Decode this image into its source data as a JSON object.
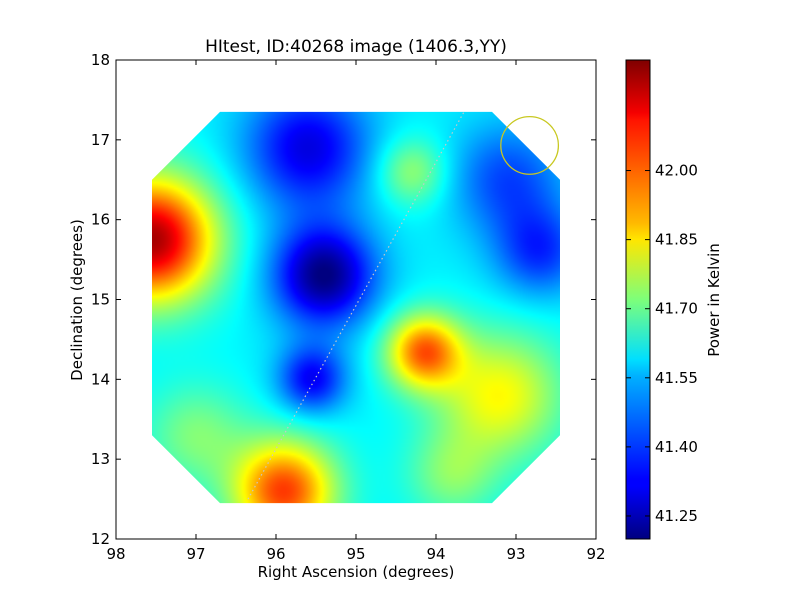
{
  "chart_data": {
    "type": "heatmap",
    "title": "HItest, ID:40268 image (1406.3,YY)",
    "xlabel": "Right Ascension (degrees)",
    "ylabel": "Declination (degrees)",
    "xlim": [
      98,
      92
    ],
    "ylim": [
      12,
      18
    ],
    "x_ticks": [
      "98",
      "97",
      "96",
      "95",
      "94",
      "93",
      "92"
    ],
    "y_ticks": [
      "12",
      "13",
      "14",
      "15",
      "16",
      "17",
      "18"
    ],
    "colorbar": {
      "label": "Power in Kelvin",
      "range": [
        41.2,
        42.24
      ],
      "ticks": [
        "41.25",
        "41.40",
        "41.55",
        "41.70",
        "41.85",
        "42.00"
      ],
      "colormap": "jet"
    },
    "background_value": 41.58,
    "blobs": [
      {
        "ra": 97.55,
        "dec": 15.75,
        "value": 42.2,
        "sigma": 0.55
      },
      {
        "ra": 95.9,
        "dec": 12.6,
        "value": 42.05,
        "sigma": 0.45
      },
      {
        "ra": 94.15,
        "dec": 14.35,
        "value": 42.0,
        "sigma": 0.33
      },
      {
        "ra": 93.2,
        "dec": 13.8,
        "value": 41.85,
        "sigma": 0.55
      },
      {
        "ra": 95.4,
        "dec": 15.3,
        "value": 41.2,
        "sigma": 0.45
      },
      {
        "ra": 95.6,
        "dec": 16.9,
        "value": 41.3,
        "sigma": 0.55
      },
      {
        "ra": 95.55,
        "dec": 14.0,
        "value": 41.32,
        "sigma": 0.3
      },
      {
        "ra": 92.7,
        "dec": 15.6,
        "value": 41.38,
        "sigma": 0.4
      },
      {
        "ra": 93.1,
        "dec": 16.5,
        "value": 41.4,
        "sigma": 0.5
      },
      {
        "ra": 94.3,
        "dec": 16.6,
        "value": 41.75,
        "sigma": 0.3
      },
      {
        "ra": 97.0,
        "dec": 13.3,
        "value": 41.72,
        "sigma": 0.45
      },
      {
        "ra": 93.8,
        "dec": 12.8,
        "value": 41.72,
        "sigma": 0.4
      }
    ],
    "footprint_ra_dec": [
      [
        96.7,
        17.35
      ],
      [
        93.3,
        17.35
      ],
      [
        92.45,
        16.5
      ],
      [
        92.45,
        13.3
      ],
      [
        93.3,
        12.45
      ],
      [
        96.7,
        12.45
      ],
      [
        97.55,
        13.3
      ],
      [
        97.55,
        16.5
      ]
    ],
    "dotted_line": {
      "from": [
        96.35,
        12.5
      ],
      "to": [
        93.65,
        17.35
      ],
      "color": "#c8c8c8"
    },
    "beam_circle": {
      "ra": 92.83,
      "dec": 16.93,
      "radius_deg": 0.36,
      "color": "#c8c820"
    }
  }
}
